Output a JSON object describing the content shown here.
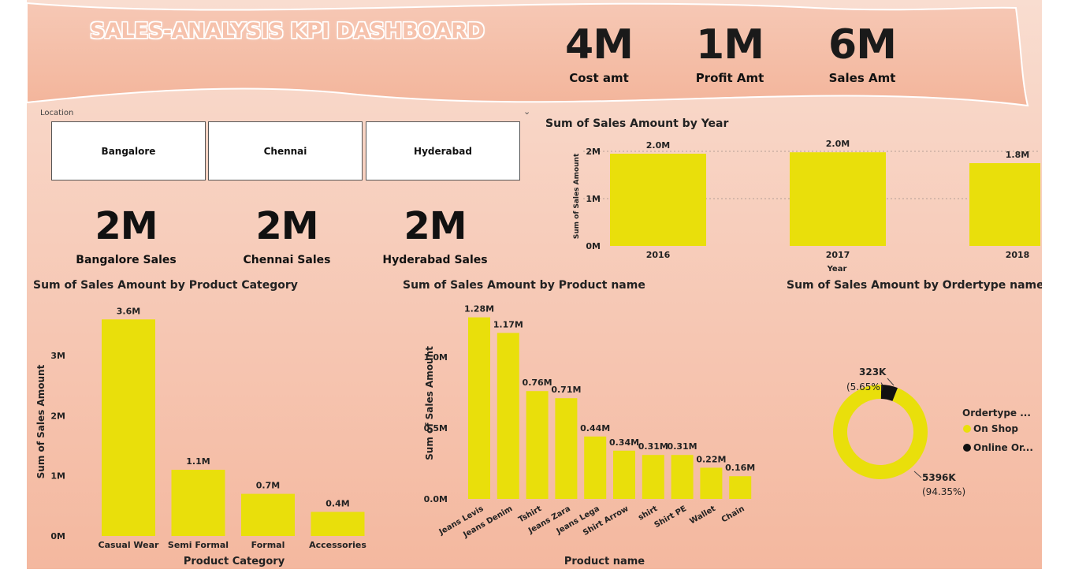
{
  "header": {
    "title": "SALES-ANALYSIS KPI DASHBOARD"
  },
  "kpis": [
    {
      "value": "4M",
      "label": "Cost amt"
    },
    {
      "value": "1M",
      "label": "Profit Amt"
    },
    {
      "value": "6M",
      "label": "Sales Amt"
    }
  ],
  "slicer": {
    "label": "Location",
    "options": [
      "Bangalore",
      "Chennai",
      "Hyderabad"
    ]
  },
  "city_kpis": [
    {
      "value": "2M",
      "label": "Bangalore Sales"
    },
    {
      "value": "2M",
      "label": "Chennai Sales"
    },
    {
      "value": "2M",
      "label": "Hyderabad Sales"
    }
  ],
  "colors": {
    "bar": "#e9df0b",
    "online": "#111111",
    "accent": "#f4b89f"
  },
  "chart_data": [
    {
      "type": "bar",
      "title": "Sum of Sales Amount by Year",
      "xlabel": "Year",
      "ylabel": "Sum of Sales Amount",
      "categories": [
        "2016",
        "2017",
        "2018"
      ],
      "values": [
        1.95,
        1.98,
        1.75
      ],
      "data_labels": [
        "2.0M",
        "2.0M",
        "1.8M"
      ],
      "yticks": [
        "0M",
        "1M",
        "2M"
      ],
      "ylim": [
        0,
        2.1
      ],
      "grid": true
    },
    {
      "type": "bar",
      "title": "Sum of Sales Amount by Product Category",
      "xlabel": "Product Category",
      "ylabel": "Sum of Sales Amount",
      "categories": [
        "Casual Wear",
        "Semi Formal",
        "Formal",
        "Accessories"
      ],
      "values": [
        3.6,
        1.1,
        0.7,
        0.4
      ],
      "data_labels": [
        "3.6M",
        "1.1M",
        "0.7M",
        "0.4M"
      ],
      "yticks": [
        "0M",
        "1M",
        "2M",
        "3M"
      ],
      "ylim": [
        0,
        3.8
      ]
    },
    {
      "type": "bar",
      "title": "Sum of Sales Amount by Product name",
      "xlabel": "Product name",
      "ylabel": "Sum of Sales Amount",
      "categories": [
        "Jeans Levis",
        "Jeans Denim",
        "Tshirt",
        "Jeans Zara",
        "Jeans Lega",
        "Shirt Arrow",
        "shirt",
        "Shirt PE",
        "Wallet",
        "Chain"
      ],
      "values": [
        1.28,
        1.17,
        0.76,
        0.71,
        0.44,
        0.34,
        0.31,
        0.31,
        0.22,
        0.16
      ],
      "data_labels": [
        "1.28M",
        "1.17M",
        "0.76M",
        "0.71M",
        "0.44M",
        "0.34M",
        "0.31M",
        "0.31M",
        "0.22M",
        "0.16M"
      ],
      "yticks": [
        "0.0M",
        "0.5M",
        "1.0M"
      ],
      "ylim": [
        0,
        1.35
      ]
    },
    {
      "type": "pie",
      "title": "Sum of Sales Amount by Ordertype name",
      "legend_title": "Ordertype ...",
      "legend_position": "right",
      "slices": [
        {
          "name": "On Shop",
          "value": 5396,
          "label": "5396K",
          "pct": "(94.35%)"
        },
        {
          "name": "Online Or...",
          "value": 323,
          "label": "323K",
          "pct": "(5.65%)"
        }
      ]
    }
  ]
}
